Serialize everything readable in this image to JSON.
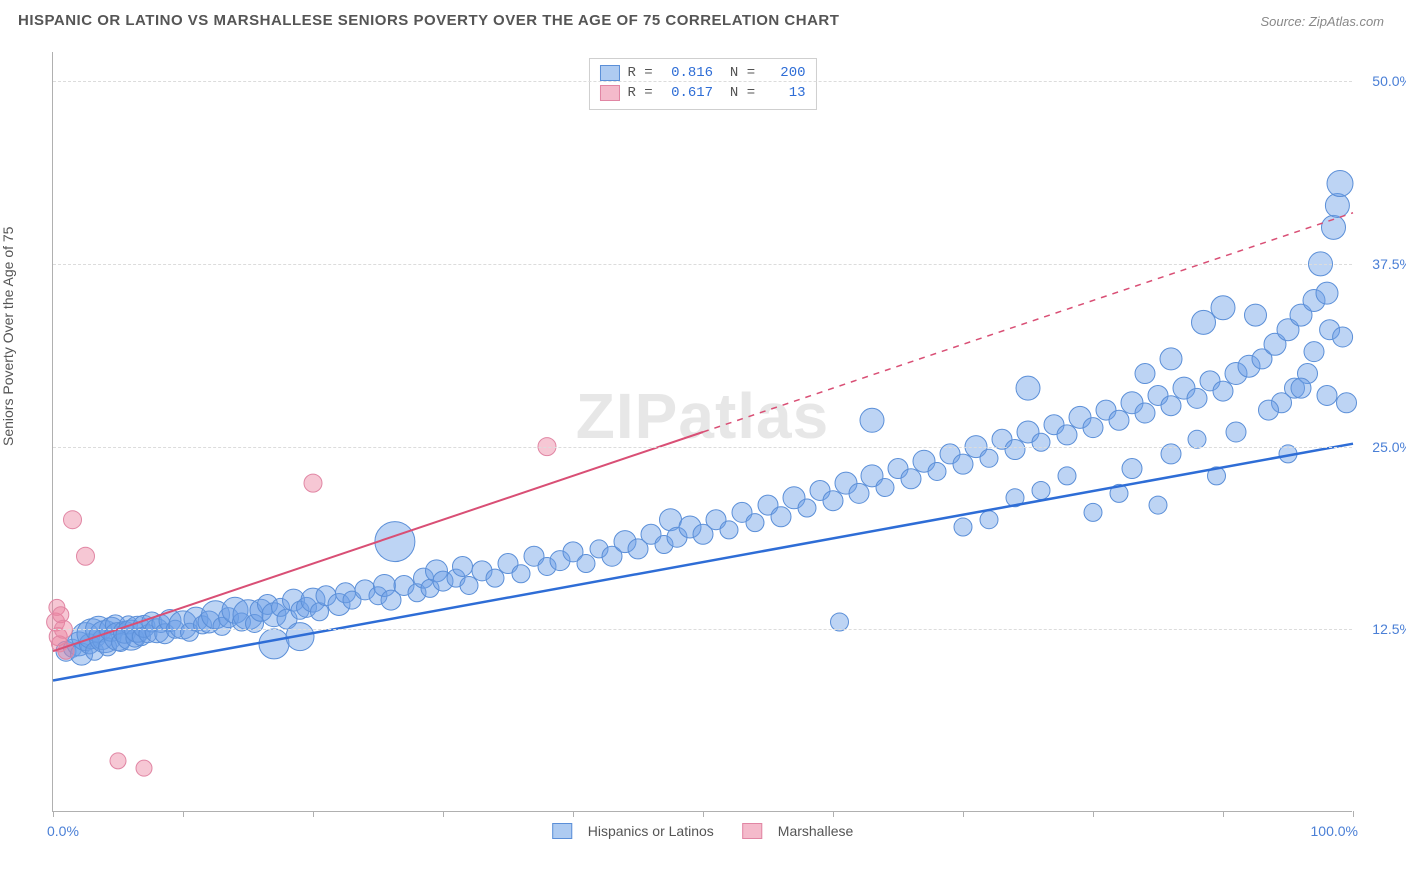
{
  "title": "HISPANIC OR LATINO VS MARSHALLESE SENIORS POVERTY OVER THE AGE OF 75 CORRELATION CHART",
  "source": "Source: ZipAtlas.com",
  "watermark": "ZIPatlas",
  "ylabel": "Seniors Poverty Over the Age of 75",
  "chart": {
    "type": "scatter",
    "xlim": [
      0,
      100
    ],
    "ylim": [
      0,
      52
    ],
    "xticks": [
      0,
      10,
      20,
      30,
      40,
      50,
      60,
      70,
      80,
      90,
      100
    ],
    "yticks": [
      12.5,
      25.0,
      37.5,
      50.0
    ],
    "ytick_labels": [
      "12.5%",
      "25.0%",
      "37.5%",
      "50.0%"
    ],
    "xmin_label": "0.0%",
    "xmax_label": "100.0%",
    "background_color": "#ffffff",
    "grid_color": "#dcdcdc",
    "axis_color": "#b0b0b0",
    "series": [
      {
        "name": "Hispanics or Latinos",
        "color_fill": "rgba(108,160,230,0.45)",
        "color_stroke": "#5b8fd8",
        "trend_color": "#2e6dd6",
        "trend_style": "solid",
        "trend_width": 2.5,
        "trend": {
          "x1": 0,
          "y1": 9.0,
          "x2": 100,
          "y2": 25.2
        },
        "R": "0.816",
        "N": "200",
        "points": [
          [
            1.0,
            11.0,
            10
          ],
          [
            1.5,
            11.2,
            9
          ],
          [
            2.0,
            11.5,
            12
          ],
          [
            2.2,
            10.8,
            11
          ],
          [
            2.5,
            12.0,
            14
          ],
          [
            2.8,
            11.5,
            10
          ],
          [
            3.0,
            12.2,
            15
          ],
          [
            3.2,
            11.0,
            9
          ],
          [
            3.5,
            12.5,
            13
          ],
          [
            3.8,
            11.8,
            10
          ],
          [
            4.0,
            12.0,
            16
          ],
          [
            4.2,
            11.3,
            9
          ],
          [
            4.5,
            12.5,
            12
          ],
          [
            4.8,
            12.8,
            10
          ],
          [
            5.0,
            12.0,
            14
          ],
          [
            5.2,
            11.6,
            9
          ],
          [
            5.5,
            12.3,
            11
          ],
          [
            5.8,
            12.8,
            9
          ],
          [
            6.0,
            12.1,
            15
          ],
          [
            6.3,
            11.9,
            9
          ],
          [
            6.5,
            12.5,
            13
          ],
          [
            6.8,
            12.0,
            9
          ],
          [
            7.0,
            12.7,
            11
          ],
          [
            7.3,
            12.2,
            9
          ],
          [
            7.6,
            13.0,
            10
          ],
          [
            8.0,
            12.4,
            12
          ],
          [
            8.3,
            12.9,
            9
          ],
          [
            8.6,
            12.2,
            10
          ],
          [
            9.0,
            13.1,
            11
          ],
          [
            9.4,
            12.5,
            9
          ],
          [
            10.0,
            12.8,
            14
          ],
          [
            10.5,
            12.3,
            9
          ],
          [
            11.0,
            13.2,
            12
          ],
          [
            11.5,
            12.8,
            9
          ],
          [
            12.0,
            13.0,
            11
          ],
          [
            12.5,
            13.5,
            14
          ],
          [
            13.0,
            12.7,
            9
          ],
          [
            13.5,
            13.3,
            10
          ],
          [
            14.0,
            13.8,
            13
          ],
          [
            14.5,
            13.0,
            9
          ],
          [
            15.0,
            13.5,
            15
          ],
          [
            15.5,
            12.9,
            9
          ],
          [
            16.0,
            13.8,
            11
          ],
          [
            16.5,
            14.2,
            10
          ],
          [
            17.0,
            13.5,
            12
          ],
          [
            17.5,
            14.0,
            9
          ],
          [
            18.0,
            13.2,
            10
          ],
          [
            18.5,
            14.5,
            11
          ],
          [
            19.0,
            13.8,
            9
          ],
          [
            19.5,
            14.0,
            10
          ],
          [
            20.0,
            14.5,
            12
          ],
          [
            20.5,
            13.7,
            9
          ],
          [
            21.0,
            14.8,
            10
          ],
          [
            22.0,
            14.2,
            11
          ],
          [
            22.5,
            15.0,
            10
          ],
          [
            23.0,
            14.5,
            9
          ],
          [
            24.0,
            15.2,
            10
          ],
          [
            25.0,
            14.8,
            9
          ],
          [
            25.5,
            15.5,
            11
          ],
          [
            26.0,
            14.5,
            10
          ],
          [
            26.3,
            18.5,
            20
          ],
          [
            27.0,
            15.5,
            10
          ],
          [
            28.0,
            15.0,
            9
          ],
          [
            28.5,
            16.0,
            10
          ],
          [
            29.0,
            15.3,
            9
          ],
          [
            29.5,
            16.5,
            11
          ],
          [
            30.0,
            15.8,
            10
          ],
          [
            31.0,
            16.0,
            9
          ],
          [
            31.5,
            16.8,
            10
          ],
          [
            32.0,
            15.5,
            9
          ],
          [
            33.0,
            16.5,
            10
          ],
          [
            34.0,
            16.0,
            9
          ],
          [
            35.0,
            17.0,
            10
          ],
          [
            36.0,
            16.3,
            9
          ],
          [
            37.0,
            17.5,
            10
          ],
          [
            38.0,
            16.8,
            9
          ],
          [
            39.0,
            17.2,
            10
          ],
          [
            40.0,
            17.8,
            10
          ],
          [
            41.0,
            17.0,
            9
          ],
          [
            42.0,
            18.0,
            9
          ],
          [
            43.0,
            17.5,
            10
          ],
          [
            44.0,
            18.5,
            11
          ],
          [
            45.0,
            18.0,
            10
          ],
          [
            46.0,
            19.0,
            10
          ],
          [
            47.0,
            18.3,
            9
          ],
          [
            47.5,
            20.0,
            11
          ],
          [
            48.0,
            18.8,
            10
          ],
          [
            49.0,
            19.5,
            11
          ],
          [
            50.0,
            19.0,
            10
          ],
          [
            51.0,
            20.0,
            10
          ],
          [
            52.0,
            19.3,
            9
          ],
          [
            53.0,
            20.5,
            10
          ],
          [
            54.0,
            19.8,
            9
          ],
          [
            55.0,
            21.0,
            10
          ],
          [
            56.0,
            20.2,
            10
          ],
          [
            57.0,
            21.5,
            11
          ],
          [
            58.0,
            20.8,
            9
          ],
          [
            59.0,
            22.0,
            10
          ],
          [
            60.0,
            21.3,
            10
          ],
          [
            61.0,
            22.5,
            11
          ],
          [
            60.5,
            13.0,
            9
          ],
          [
            62.0,
            21.8,
            10
          ],
          [
            63.0,
            23.0,
            11
          ],
          [
            64.0,
            22.2,
            9
          ],
          [
            65.0,
            23.5,
            10
          ],
          [
            66.0,
            22.8,
            10
          ],
          [
            67.0,
            24.0,
            11
          ],
          [
            68.0,
            23.3,
            9
          ],
          [
            69.0,
            24.5,
            10
          ],
          [
            70.0,
            23.8,
            10
          ],
          [
            63.0,
            26.8,
            12
          ],
          [
            71.0,
            25.0,
            11
          ],
          [
            72.0,
            24.2,
            9
          ],
          [
            73.0,
            25.5,
            10
          ],
          [
            74.0,
            24.8,
            10
          ],
          [
            75.0,
            26.0,
            11
          ],
          [
            76.0,
            25.3,
            9
          ],
          [
            77.0,
            26.5,
            10
          ],
          [
            78.0,
            25.8,
            10
          ],
          [
            79.0,
            27.0,
            11
          ],
          [
            80.0,
            26.3,
            10
          ],
          [
            75.0,
            29.0,
            12
          ],
          [
            81.0,
            27.5,
            10
          ],
          [
            82.0,
            26.8,
            10
          ],
          [
            83.0,
            28.0,
            11
          ],
          [
            84.0,
            27.3,
            10
          ],
          [
            85.0,
            28.5,
            10
          ],
          [
            86.0,
            27.8,
            10
          ],
          [
            87.0,
            29.0,
            11
          ],
          [
            88.0,
            28.3,
            10
          ],
          [
            89.0,
            29.5,
            10
          ],
          [
            90.0,
            28.8,
            10
          ],
          [
            91.0,
            30.0,
            11
          ],
          [
            83.0,
            23.5,
            10
          ],
          [
            85.0,
            21.0,
            9
          ],
          [
            86.0,
            24.5,
            10
          ],
          [
            88.5,
            33.5,
            12
          ],
          [
            90.0,
            34.5,
            12
          ],
          [
            92.0,
            30.5,
            11
          ],
          [
            93.0,
            31.0,
            10
          ],
          [
            94.0,
            32.0,
            11
          ],
          [
            94.5,
            28.0,
            10
          ],
          [
            95.0,
            33.0,
            11
          ],
          [
            95.5,
            29.0,
            10
          ],
          [
            96.0,
            34.0,
            11
          ],
          [
            96.5,
            30.0,
            10
          ],
          [
            97.0,
            35.0,
            11
          ],
          [
            97.5,
            37.5,
            12
          ],
          [
            98.0,
            28.5,
            10
          ],
          [
            98.2,
            33.0,
            10
          ],
          [
            98.5,
            40.0,
            12
          ],
          [
            98.8,
            41.5,
            12
          ],
          [
            99.0,
            43.0,
            13
          ],
          [
            99.2,
            32.5,
            10
          ],
          [
            99.5,
            28.0,
            10
          ],
          [
            70.0,
            19.5,
            9
          ],
          [
            72.0,
            20.0,
            9
          ],
          [
            74.0,
            21.5,
            9
          ],
          [
            76.0,
            22.0,
            9
          ],
          [
            78.0,
            23.0,
            9
          ],
          [
            80.0,
            20.5,
            9
          ],
          [
            82.0,
            21.8,
            9
          ],
          [
            84.0,
            30.0,
            10
          ],
          [
            86.0,
            31.0,
            11
          ],
          [
            88.0,
            25.5,
            9
          ],
          [
            89.5,
            23.0,
            9
          ],
          [
            91.0,
            26.0,
            10
          ],
          [
            92.5,
            34.0,
            11
          ],
          [
            93.5,
            27.5,
            10
          ],
          [
            95.0,
            24.5,
            9
          ],
          [
            96.0,
            29.0,
            10
          ],
          [
            97.0,
            31.5,
            10
          ],
          [
            98.0,
            35.5,
            11
          ],
          [
            17.0,
            11.5,
            15
          ],
          [
            19.0,
            12.0,
            14
          ]
        ]
      },
      {
        "name": "Marshallese",
        "color_fill": "rgba(235,130,160,0.45)",
        "color_stroke": "#e186a4",
        "trend_color": "#d94f75",
        "trend_style": "half-dashed",
        "trend_width": 2,
        "trend": {
          "x1": 0,
          "y1": 11.0,
          "x2": 100,
          "y2": 41.0
        },
        "R": "0.617",
        "N": "13",
        "points": [
          [
            0.2,
            13.0,
            9
          ],
          [
            0.3,
            14.0,
            8
          ],
          [
            0.4,
            12.0,
            9
          ],
          [
            0.5,
            11.5,
            8
          ],
          [
            0.6,
            13.5,
            8
          ],
          [
            0.8,
            12.5,
            9
          ],
          [
            1.0,
            11.0,
            8
          ],
          [
            1.5,
            20.0,
            9
          ],
          [
            2.5,
            17.5,
            9
          ],
          [
            5.0,
            3.5,
            8
          ],
          [
            7.0,
            3.0,
            8
          ],
          [
            20.0,
            22.5,
            9
          ],
          [
            38.0,
            25.0,
            9
          ]
        ]
      }
    ],
    "bottom_legend": [
      {
        "label": "Hispanics or Latinos",
        "fill": "rgba(108,160,230,0.55)",
        "stroke": "#5b8fd8"
      },
      {
        "label": "Marshallese",
        "fill": "rgba(235,130,160,0.55)",
        "stroke": "#e186a4"
      }
    ]
  }
}
